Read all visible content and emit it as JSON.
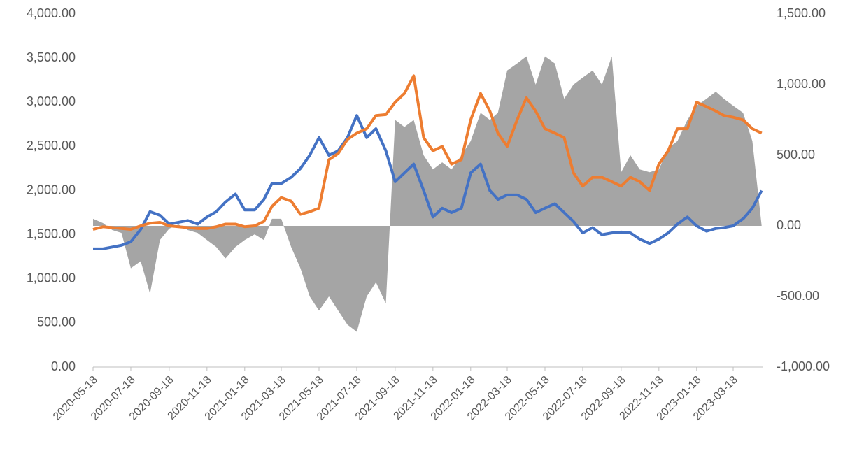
{
  "chart_data": {
    "type": "line",
    "x": [
      "2020-05-18",
      "2020-06-03",
      "2020-06-18",
      "2020-07-03",
      "2020-07-18",
      "2020-08-03",
      "2020-08-18",
      "2020-09-03",
      "2020-09-18",
      "2020-10-03",
      "2020-10-18",
      "2020-11-03",
      "2020-11-18",
      "2020-12-03",
      "2020-12-18",
      "2021-01-03",
      "2021-01-18",
      "2021-02-03",
      "2021-02-18",
      "2021-03-03",
      "2021-03-18",
      "2021-04-03",
      "2021-04-18",
      "2021-05-03",
      "2021-05-18",
      "2021-06-03",
      "2021-06-18",
      "2021-07-03",
      "2021-07-18",
      "2021-08-03",
      "2021-08-18",
      "2021-09-03",
      "2021-09-18",
      "2021-10-03",
      "2021-10-18",
      "2021-11-03",
      "2021-11-18",
      "2021-12-03",
      "2021-12-18",
      "2022-01-03",
      "2022-01-18",
      "2022-02-03",
      "2022-02-18",
      "2022-03-03",
      "2022-03-18",
      "2022-04-03",
      "2022-04-18",
      "2022-05-03",
      "2022-05-18",
      "2022-06-03",
      "2022-06-18",
      "2022-07-03",
      "2022-07-18",
      "2022-08-03",
      "2022-08-18",
      "2022-09-03",
      "2022-09-18",
      "2022-10-03",
      "2022-10-18",
      "2022-11-03",
      "2022-11-18",
      "2022-12-03",
      "2022-12-18",
      "2023-01-03",
      "2023-01-18",
      "2023-02-03",
      "2023-02-18",
      "2023-03-03",
      "2023-03-18",
      "2023-04-03",
      "2023-04-18",
      "2023-05-03"
    ],
    "series": [
      {
        "name": "Gray",
        "color": "#a5a5a5",
        "axis": "y2",
        "kind": "area",
        "values": [
          50,
          20,
          -30,
          -50,
          -300,
          -250,
          -480,
          -100,
          -20,
          10,
          -30,
          -50,
          -100,
          -150,
          -230,
          -150,
          -100,
          -60,
          -100,
          50,
          50,
          -150,
          -300,
          -500,
          -600,
          -500,
          -600,
          -700,
          -750,
          -500,
          -400,
          -550,
          750,
          700,
          750,
          500,
          400,
          450,
          400,
          500,
          600,
          800,
          750,
          800,
          1100,
          1150,
          1200,
          1000,
          1200,
          1150,
          900,
          1000,
          1050,
          1100,
          1000,
          1200,
          380,
          500,
          400,
          380,
          400,
          550,
          600,
          750,
          850,
          900,
          950,
          900,
          850,
          800,
          600,
          0
        ]
      },
      {
        "name": "Blue",
        "color": "#4472c4",
        "values": [
          1340,
          1340,
          1360,
          1380,
          1420,
          1560,
          1760,
          1720,
          1620,
          1640,
          1660,
          1620,
          1700,
          1760,
          1870,
          1960,
          1780,
          1780,
          1900,
          2080,
          2080,
          2150,
          2250,
          2400,
          2600,
          2400,
          2450,
          2600,
          2850,
          2600,
          2700,
          2450,
          2100,
          2200,
          2300,
          2000,
          1700,
          1800,
          1750,
          1800,
          2200,
          2300,
          2000,
          1900,
          1950,
          1950,
          1900,
          1750,
          1800,
          1850,
          1750,
          1650,
          1520,
          1580,
          1500,
          1520,
          1530,
          1520,
          1450,
          1400,
          1450,
          1520,
          1620,
          1700,
          1600,
          1540,
          1570,
          1580,
          1600,
          1680,
          1800,
          2000
        ]
      },
      {
        "name": "Orange",
        "color": "#ed7d31",
        "values": [
          1560,
          1590,
          1580,
          1570,
          1560,
          1600,
          1630,
          1640,
          1600,
          1590,
          1580,
          1570,
          1570,
          1590,
          1620,
          1620,
          1590,
          1600,
          1650,
          1820,
          1920,
          1880,
          1730,
          1760,
          1800,
          2350,
          2420,
          2580,
          2650,
          2700,
          2850,
          2860,
          3000,
          3100,
          3300,
          2600,
          2450,
          2500,
          2300,
          2350,
          2800,
          3100,
          2900,
          2650,
          2500,
          2800,
          3050,
          2900,
          2700,
          2650,
          2600,
          2200,
          2050,
          2150,
          2150,
          2100,
          2050,
          2150,
          2100,
          2000,
          2300,
          2450,
          2700,
          2700,
          3000,
          2950,
          2900,
          2850,
          2830,
          2800,
          2700,
          2650
        ]
      }
    ],
    "xticks": [
      "2020-05-18",
      "2020-07-18",
      "2020-09-18",
      "2020-11-18",
      "2021-01-18",
      "2021-03-18",
      "2021-05-18",
      "2021-07-18",
      "2021-09-18",
      "2021-11-18",
      "2022-01-18",
      "2022-03-18",
      "2022-05-18",
      "2022-07-18",
      "2022-09-18",
      "2022-11-18",
      "2023-01-18",
      "2023-03-18"
    ],
    "ylim": [
      0,
      4000
    ],
    "yticks": [
      {
        "value": 0,
        "label": "0.00"
      },
      {
        "value": 500,
        "label": "500.00"
      },
      {
        "value": 1000,
        "label": "1,000.00"
      },
      {
        "value": 1500,
        "label": "1,500.00"
      },
      {
        "value": 2000,
        "label": "2,000.00"
      },
      {
        "value": 2500,
        "label": "2,500.00"
      },
      {
        "value": 3000,
        "label": "3,000.00"
      },
      {
        "value": 3500,
        "label": "3,500.00"
      },
      {
        "value": 4000,
        "label": "4,000.00"
      }
    ],
    "y2lim": [
      -1000,
      1500
    ],
    "y2ticks": [
      {
        "value": -1000,
        "label": "-1,000.00"
      },
      {
        "value": -500,
        "label": "-500.00"
      },
      {
        "value": 0,
        "label": "0.00"
      },
      {
        "value": 500,
        "label": "500.00"
      },
      {
        "value": 1000,
        "label": "1,000.00"
      },
      {
        "value": 1500,
        "label": "1,500.00"
      }
    ],
    "grid": false
  }
}
